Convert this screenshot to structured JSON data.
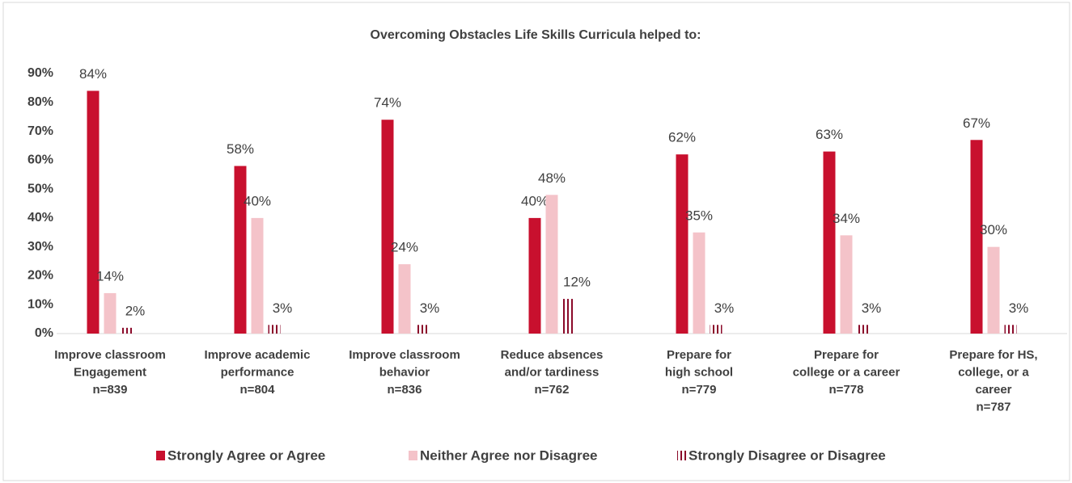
{
  "chart_data": {
    "type": "bar",
    "title": "Overcoming Obstacles Life Skills Curricula helped to:",
    "categories": [
      [
        "Improve  classroom",
        "Engagement",
        "n=839"
      ],
      [
        "Improve academic",
        "performance",
        "n=804"
      ],
      [
        "Improve classroom",
        "behavior",
        "n=836"
      ],
      [
        "Reduce absences",
        "and/or tardiness",
        "n=762"
      ],
      [
        "Prepare  for",
        "high school",
        "n=779"
      ],
      [
        "Prepare for",
        "college or a career",
        "n=778"
      ],
      [
        "Prepare for HS,",
        "college, or a",
        "career",
        "n=787"
      ]
    ],
    "series": [
      {
        "name": "Strongly Agree or Agree",
        "color": "#c8102e",
        "values": [
          84,
          58,
          74,
          40,
          62,
          63,
          67
        ],
        "value_labels": [
          "84%",
          "58%",
          "74%",
          "40%",
          "62%",
          "63%",
          "67%"
        ]
      },
      {
        "name": "Neither Agree nor Disagree",
        "color": "#f4c3c9",
        "values": [
          14,
          40,
          24,
          48,
          35,
          34,
          30
        ],
        "value_labels": [
          "14%",
          "40%",
          "24%",
          "48%",
          "35%",
          "34%",
          "30%"
        ]
      },
      {
        "name": "Strongly Disagree or Disagree",
        "color": "#8b0a2a",
        "pattern": "vertical-stripes",
        "values": [
          2,
          3,
          3,
          12,
          3,
          3,
          3
        ],
        "value_labels": [
          "2%",
          "3%",
          "3%",
          "12%",
          "3%",
          "3%",
          "3%"
        ]
      }
    ],
    "ylim": [
      0,
      90
    ],
    "yticks": [
      {
        "value": 0,
        "label": "0%"
      },
      {
        "value": 10,
        "label": "10%"
      },
      {
        "value": 20,
        "label": "20%"
      },
      {
        "value": 30,
        "label": "30%"
      },
      {
        "value": 40,
        "label": "40%"
      },
      {
        "value": 50,
        "label": "50%"
      },
      {
        "value": 60,
        "label": "60%"
      },
      {
        "value": 70,
        "label": "70%"
      },
      {
        "value": 80,
        "label": "80%"
      },
      {
        "value": 90,
        "label": "90%"
      }
    ],
    "grid": false,
    "legend": "bottom"
  }
}
